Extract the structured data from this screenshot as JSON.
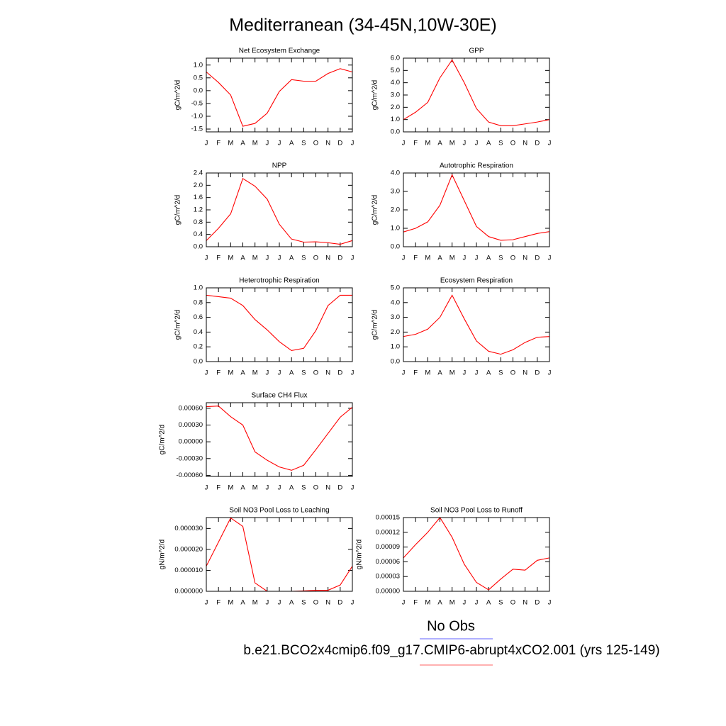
{
  "title": "Mediterranean (34-45N,10W-30E)",
  "legend": [
    {
      "name": "No Obs",
      "color": "#8080ff"
    },
    {
      "name": "b.e21.BCO2x4cmip6.f09_g17.CMIP6-abrupt4xCO2.001 (yrs 125-149)",
      "color": "#ff8080"
    }
  ],
  "chart_data": [
    {
      "type": "line",
      "title": "Net Ecosystem Exchange",
      "ylabel": "gC/m^2/d",
      "color": "#ff0000",
      "categories": [
        "J",
        "F",
        "M",
        "A",
        "M",
        "J",
        "J",
        "A",
        "S",
        "O",
        "N",
        "D",
        "J"
      ],
      "values": [
        0.73,
        0.32,
        -0.17,
        -1.39,
        -1.28,
        -0.88,
        -0.03,
        0.43,
        0.37,
        0.37,
        0.67,
        0.86,
        0.73
      ],
      "ylim": [
        -1.61,
        1.27
      ],
      "yticks": [
        -1.5,
        {
          "value": -1,
          "label": "-1.0"
        },
        -0.5,
        {
          "value": 0,
          "label": "0.0"
        },
        0.5,
        {
          "value": 1,
          "label": "1.0"
        }
      ]
    },
    {
      "type": "line",
      "title": "GPP",
      "ylabel": "gC/m^2/d",
      "color": "#ff0000",
      "categories": [
        "J",
        "F",
        "M",
        "A",
        "M",
        "J",
        "J",
        "A",
        "S",
        "O",
        "N",
        "D",
        "J"
      ],
      "values": [
        1.0,
        1.6,
        2.4,
        4.4,
        5.85,
        4.0,
        1.9,
        0.8,
        0.5,
        0.5,
        0.65,
        0.8,
        1.0
      ],
      "ylim": [
        0,
        6
      ],
      "yticks": [
        {
          "value": 0,
          "label": "0.0"
        },
        {
          "value": 1,
          "label": "1.0"
        },
        {
          "value": 2,
          "label": "2.0"
        },
        {
          "value": 3,
          "label": "3.0"
        },
        {
          "value": 4,
          "label": "4.0"
        },
        {
          "value": 5,
          "label": "5.0"
        },
        {
          "value": 6,
          "label": "6.0"
        }
      ]
    },
    {
      "type": "line",
      "title": "NPP",
      "ylabel": "gC/m^2/d",
      "color": "#ff0000",
      "categories": [
        "J",
        "F",
        "M",
        "A",
        "M",
        "J",
        "J",
        "A",
        "S",
        "O",
        "N",
        "D",
        "J"
      ],
      "values": [
        0.2,
        0.6,
        1.07,
        2.22,
        1.97,
        1.55,
        0.73,
        0.25,
        0.15,
        0.16,
        0.13,
        0.08,
        0.2
      ],
      "ylim": [
        0,
        2.4
      ],
      "yticks": [
        {
          "value": 0,
          "label": "0.0"
        },
        0.4,
        0.8,
        1.2,
        1.6,
        {
          "value": 2,
          "label": "2.0"
        },
        2.4
      ]
    },
    {
      "type": "line",
      "title": "Autotrophic Respiration",
      "ylabel": "gC/m^2/d",
      "color": "#ff0000",
      "categories": [
        "J",
        "F",
        "M",
        "A",
        "M",
        "J",
        "J",
        "A",
        "S",
        "O",
        "N",
        "D",
        "J"
      ],
      "values": [
        0.8,
        1.0,
        1.35,
        2.25,
        3.9,
        2.5,
        1.1,
        0.55,
        0.35,
        0.38,
        0.55,
        0.72,
        0.82
      ],
      "ylim": [
        0,
        4
      ],
      "yticks": [
        {
          "value": 0,
          "label": "0.0"
        },
        {
          "value": 1,
          "label": "1.0"
        },
        {
          "value": 2,
          "label": "2.0"
        },
        {
          "value": 3,
          "label": "3.0"
        },
        {
          "value": 4,
          "label": "4.0"
        }
      ]
    },
    {
      "type": "line",
      "title": "Heterotrophic Respiration",
      "ylabel": "gC/m^2/d",
      "color": "#ff0000",
      "categories": [
        "J",
        "F",
        "M",
        "A",
        "M",
        "J",
        "J",
        "A",
        "S",
        "O",
        "N",
        "D",
        "J"
      ],
      "values": [
        0.9,
        0.88,
        0.86,
        0.76,
        0.57,
        0.43,
        0.27,
        0.15,
        0.18,
        0.42,
        0.76,
        0.9,
        0.9
      ],
      "ylim": [
        0,
        1
      ],
      "yticks": [
        {
          "value": 0,
          "label": "0.0"
        },
        0.2,
        0.4,
        0.6,
        0.8,
        {
          "value": 1,
          "label": "1.0"
        }
      ]
    },
    {
      "type": "line",
      "title": "Ecosystem Respiration",
      "ylabel": "gC/m^2/d",
      "color": "#ff0000",
      "categories": [
        "J",
        "F",
        "M",
        "A",
        "M",
        "J",
        "J",
        "A",
        "S",
        "O",
        "N",
        "D",
        "J"
      ],
      "values": [
        1.7,
        1.85,
        2.2,
        3.0,
        4.5,
        2.9,
        1.4,
        0.7,
        0.5,
        0.8,
        1.3,
        1.65,
        1.7
      ],
      "ylim": [
        0,
        5
      ],
      "yticks": [
        {
          "value": 0,
          "label": "0.0"
        },
        {
          "value": 1,
          "label": "1.0"
        },
        {
          "value": 2,
          "label": "2.0"
        },
        {
          "value": 3,
          "label": "3.0"
        },
        {
          "value": 4,
          "label": "4.0"
        },
        {
          "value": 5,
          "label": "5.0"
        }
      ]
    },
    {
      "type": "line",
      "title": "Surface CH4 Flux",
      "ylabel": "gC/m^2/d",
      "color": "#ff0000",
      "categories": [
        "J",
        "F",
        "M",
        "A",
        "M",
        "J",
        "J",
        "A",
        "S",
        "O",
        "N",
        "D",
        "J"
      ],
      "values": [
        0.00063,
        0.00064,
        0.00045,
        0.0003,
        -0.00018,
        -0.00033,
        -0.00045,
        -0.00051,
        -0.00042,
        -0.00014,
        0.00015,
        0.00044,
        0.00062
      ],
      "ylim": [
        -0.00062,
        0.0007
      ],
      "yticks": [
        {
          "value": -0.0006,
          "label": "-0.00060"
        },
        {
          "value": -0.0003,
          "label": "-0.00030"
        },
        {
          "value": 0,
          "label": "0.00000"
        },
        {
          "value": 0.0003,
          "label": "0.00030"
        },
        {
          "value": 0.0006,
          "label": "0.00060"
        }
      ]
    },
    {
      "type": "line",
      "title": "Soil NO3 Pool Loss to Leaching",
      "ylabel": "gN/m^2/d",
      "color": "#ff0000",
      "categories": [
        "J",
        "F",
        "M",
        "A",
        "M",
        "J",
        "J",
        "A",
        "S",
        "O",
        "N",
        "D",
        "J"
      ],
      "values": [
        1.2e-05,
        2.35e-05,
        3.5e-05,
        3.1e-05,
        4e-06,
        0,
        0,
        0,
        2e-07,
        5e-07,
        5e-07,
        3e-06,
        1.2e-05
      ],
      "ylim": [
        0,
        3.52e-05
      ],
      "yticks": [
        {
          "value": 0,
          "label": "0.000000"
        },
        {
          "value": 1e-05,
          "label": "0.000010"
        },
        {
          "value": 2e-05,
          "label": "0.000020"
        },
        {
          "value": 3e-05,
          "label": "0.000030"
        }
      ]
    },
    {
      "type": "line",
      "title": "Soil NO3 Pool Loss to Runoff",
      "ylabel": "gN/m^2/d",
      "color": "#ff0000",
      "categories": [
        "J",
        "F",
        "M",
        "A",
        "M",
        "J",
        "J",
        "A",
        "S",
        "O",
        "N",
        "D",
        "J"
      ],
      "values": [
        6.8e-05,
        9.5e-05,
        0.00012,
        0.00015,
        0.00011,
        5.5e-05,
        1.8e-05,
        3e-06,
        2.5e-05,
        4.5e-05,
        4.3e-05,
        6.3e-05,
        6.8e-05
      ],
      "ylim": [
        0,
        0.00015
      ],
      "yticks": [
        {
          "value": 0,
          "label": "0.00000"
        },
        3e-05,
        6e-05,
        9e-05,
        0.00012,
        0.00015
      ]
    }
  ]
}
